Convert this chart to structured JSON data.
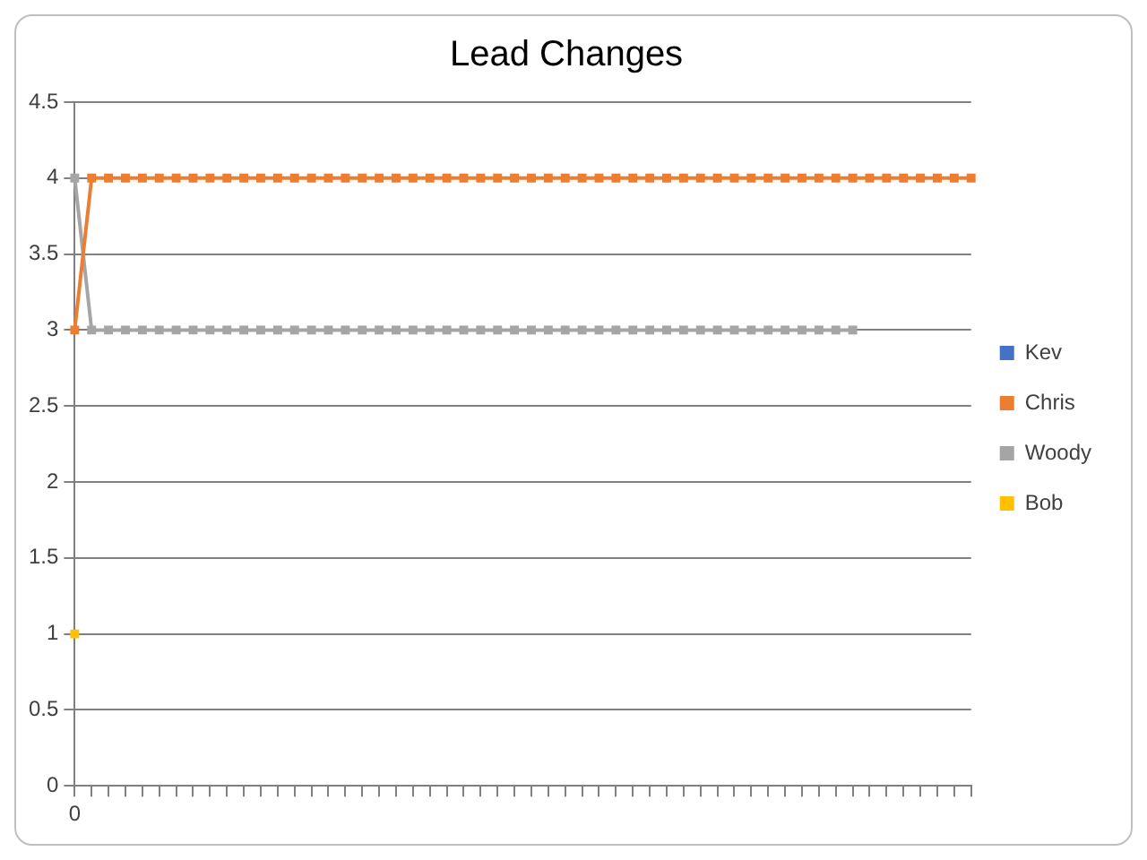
{
  "chart_data": {
    "type": "line",
    "title": "Lead Changes",
    "categories": [
      "0",
      null,
      null,
      null,
      null,
      null,
      null,
      null,
      null,
      null,
      null,
      null,
      null,
      null,
      null,
      null,
      null,
      null,
      null,
      null,
      null,
      null,
      null,
      null,
      null,
      null,
      null,
      null,
      null,
      null,
      null,
      null,
      null,
      null,
      null,
      null,
      null,
      null,
      null,
      null,
      null,
      null,
      null,
      null,
      null,
      null,
      null,
      null,
      null,
      null,
      null,
      null,
      null,
      null
    ],
    "series": [
      {
        "name": "Kev",
        "color": "#4472c4",
        "values": [
          null,
          null,
          null,
          null,
          null,
          null,
          null,
          null,
          null,
          null,
          null,
          null,
          null,
          null,
          null,
          null,
          null,
          null,
          null,
          null,
          null,
          null,
          null,
          null,
          null,
          null,
          null,
          null,
          null,
          null,
          null,
          null,
          null,
          null,
          null,
          null,
          null,
          null,
          null,
          null,
          null,
          null,
          null,
          null,
          null,
          null,
          null,
          null,
          null,
          null,
          null,
          null,
          null,
          null
        ]
      },
      {
        "name": "Chris",
        "color": "#ed7d31",
        "values": [
          3,
          4,
          4,
          4,
          4,
          4,
          4,
          4,
          4,
          4,
          4,
          4,
          4,
          4,
          4,
          4,
          4,
          4,
          4,
          4,
          4,
          4,
          4,
          4,
          4,
          4,
          4,
          4,
          4,
          4,
          4,
          4,
          4,
          4,
          4,
          4,
          4,
          4,
          4,
          4,
          4,
          4,
          4,
          4,
          4,
          4,
          4,
          4,
          4,
          4,
          4,
          4,
          4,
          4
        ]
      },
      {
        "name": "Woody",
        "color": "#a5a5a5",
        "values": [
          4,
          3,
          3,
          3,
          3,
          3,
          3,
          3,
          3,
          3,
          3,
          3,
          3,
          3,
          3,
          3,
          3,
          3,
          3,
          3,
          3,
          3,
          3,
          3,
          3,
          3,
          3,
          3,
          3,
          3,
          3,
          3,
          3,
          3,
          3,
          3,
          3,
          3,
          3,
          3,
          3,
          3,
          3,
          3,
          3,
          3,
          3,
          null,
          null,
          null,
          null,
          null,
          null,
          null
        ]
      },
      {
        "name": "Bob",
        "color": "#ffc000",
        "values": [
          1,
          null,
          null,
          null,
          null,
          null,
          null,
          null,
          null,
          null,
          null,
          null,
          null,
          null,
          null,
          null,
          null,
          null,
          null,
          null,
          null,
          null,
          null,
          null,
          null,
          null,
          null,
          null,
          null,
          null,
          null,
          null,
          null,
          null,
          null,
          null,
          null,
          null,
          null,
          null,
          null,
          null,
          null,
          null,
          null,
          null,
          null,
          null,
          null,
          null,
          null,
          null,
          null,
          null
        ]
      }
    ],
    "ylim": [
      0,
      4.5
    ],
    "yticks": [
      0,
      0.5,
      1,
      1.5,
      2,
      2.5,
      3,
      3.5,
      4,
      4.5
    ],
    "grid": "y",
    "legend": "right",
    "marker": "square",
    "line_style": "solid"
  }
}
